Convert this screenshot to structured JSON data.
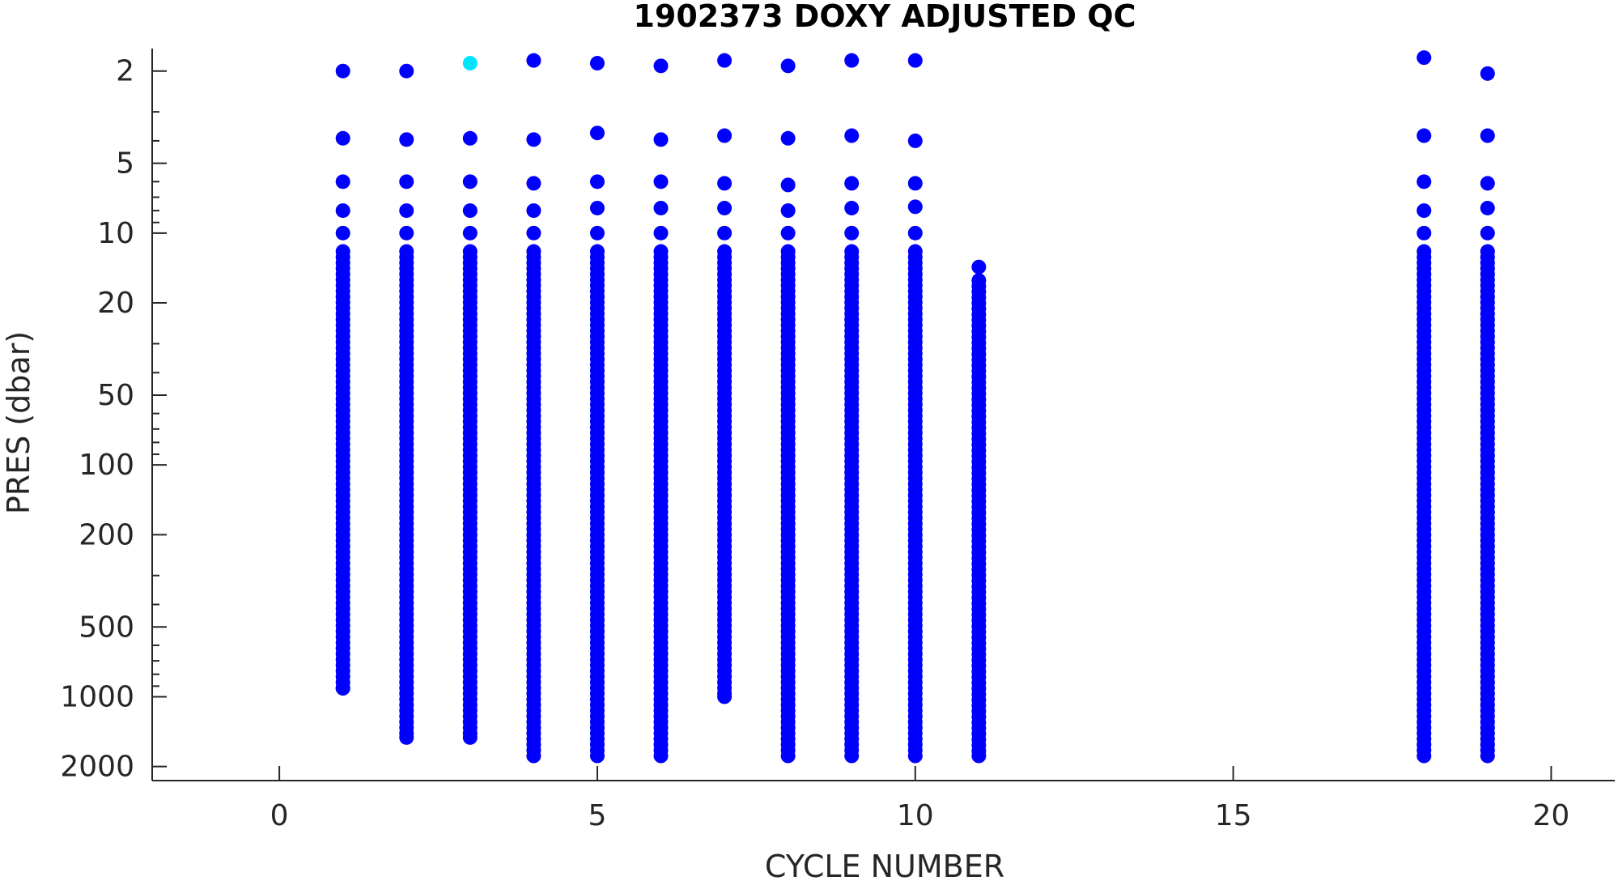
{
  "chart_data": {
    "type": "scatter",
    "title": "1902373  DOXY ADJUSTED QC",
    "xlabel": "CYCLE NUMBER",
    "ylabel": "PRES (dbar)",
    "xlim": [
      -2,
      21
    ],
    "ylim": [
      2300,
      1.6
    ],
    "yscale": "log",
    "y_reversed": true,
    "grid": false,
    "legend": "none",
    "xticks": [
      0,
      5,
      10,
      15,
      20
    ],
    "xtick_labels": [
      "0",
      "5",
      "10",
      "15",
      "20"
    ],
    "yticks": [
      2,
      5,
      10,
      20,
      50,
      100,
      200,
      500,
      1000,
      2000
    ],
    "ytick_labels": [
      "2",
      "5",
      "10",
      "20",
      "50",
      "100",
      "200",
      "500",
      "1000",
      "2000"
    ],
    "colors": {
      "qc1": "#0000ff",
      "qc_flagged": "#00e5ff"
    },
    "profiles": [
      {
        "cycle": 1,
        "top_points": [
          2.0,
          3.9,
          6.0,
          8.0,
          10.0
        ],
        "dense_from": 12,
        "max_pres": 920
      },
      {
        "cycle": 2,
        "top_points": [
          2.0,
          3.95,
          6.0,
          8.0,
          10.0
        ],
        "dense_from": 12,
        "max_pres": 1500
      },
      {
        "cycle": 3,
        "top_points": [
          1.85,
          3.9,
          6.0,
          8.0,
          10.0
        ],
        "dense_from": 12,
        "max_pres": 1500,
        "flagged_points": [
          1.85
        ]
      },
      {
        "cycle": 4,
        "top_points": [
          1.8,
          3.95,
          6.1,
          8.0,
          10.0
        ],
        "dense_from": 12,
        "max_pres": 1800
      },
      {
        "cycle": 5,
        "top_points": [
          1.85,
          3.7,
          6.0,
          7.8,
          10.0
        ],
        "dense_from": 12,
        "max_pres": 1800
      },
      {
        "cycle": 6,
        "top_points": [
          1.9,
          3.95,
          6.0,
          7.8,
          10.0
        ],
        "dense_from": 12,
        "max_pres": 1800
      },
      {
        "cycle": 7,
        "top_points": [
          1.8,
          3.8,
          6.1,
          7.8,
          10.0
        ],
        "dense_from": 12,
        "max_pres": 1000
      },
      {
        "cycle": 8,
        "top_points": [
          1.9,
          3.9,
          6.2,
          8.0,
          10.0
        ],
        "dense_from": 12,
        "max_pres": 1800
      },
      {
        "cycle": 9,
        "top_points": [
          1.8,
          3.8,
          6.1,
          7.8,
          10.0
        ],
        "dense_from": 12,
        "max_pres": 1800
      },
      {
        "cycle": 10,
        "top_points": [
          1.8,
          4.0,
          6.1,
          7.7,
          10.0
        ],
        "dense_from": 12,
        "max_pres": 1800
      },
      {
        "cycle": 11,
        "top_points": [
          14.0
        ],
        "dense_from": 16,
        "max_pres": 1800
      },
      {
        "cycle": 18,
        "top_points": [
          1.75,
          3.8,
          6.0,
          8.0,
          10.0
        ],
        "dense_from": 12,
        "max_pres": 1800
      },
      {
        "cycle": 19,
        "top_points": [
          2.05,
          3.8,
          6.1,
          7.8,
          10.0
        ],
        "dense_from": 12,
        "max_pres": 1800
      }
    ]
  }
}
